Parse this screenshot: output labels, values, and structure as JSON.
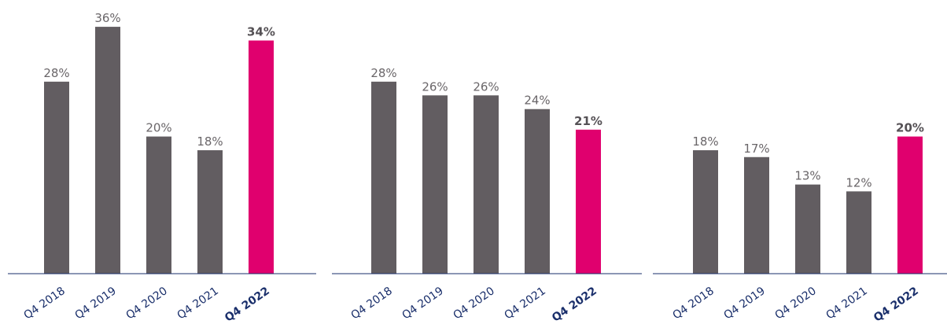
{
  "colors": {
    "bar": "#625d61",
    "highlight": "#e0006e",
    "axis": "#1a2f6b"
  },
  "chart_data": [
    {
      "type": "bar",
      "categories": [
        "Q4 2018",
        "Q4 2019",
        "Q4 2020",
        "Q4 2021",
        "Q4 2022"
      ],
      "values": [
        28,
        36,
        20,
        18,
        34
      ],
      "value_labels": [
        "28%",
        "36%",
        "20%",
        "18%",
        "34%"
      ],
      "highlight_index": 4,
      "ylim": [
        0,
        40
      ],
      "title": "",
      "xlabel": "",
      "ylabel": "",
      "grid": false
    },
    {
      "type": "bar",
      "categories": [
        "Q4 2018",
        "Q4 2019",
        "Q4 2020",
        "Q4 2021",
        "Q4 2022"
      ],
      "values": [
        28,
        26,
        26,
        24,
        21
      ],
      "value_labels": [
        "28%",
        "26%",
        "26%",
        "24%",
        "21%"
      ],
      "highlight_index": 4,
      "ylim": [
        0,
        40
      ],
      "title": "",
      "xlabel": "",
      "ylabel": "",
      "grid": false
    },
    {
      "type": "bar",
      "categories": [
        "Q4 2018",
        "Q4 2019",
        "Q4 2020",
        "Q4 2021",
        "Q4 2022"
      ],
      "values": [
        18,
        17,
        13,
        12,
        20
      ],
      "value_labels": [
        "18%",
        "17%",
        "13%",
        "12%",
        "20%"
      ],
      "highlight_index": 4,
      "ylim": [
        0,
        40
      ],
      "title": "",
      "xlabel": "",
      "ylabel": "",
      "grid": false
    }
  ]
}
